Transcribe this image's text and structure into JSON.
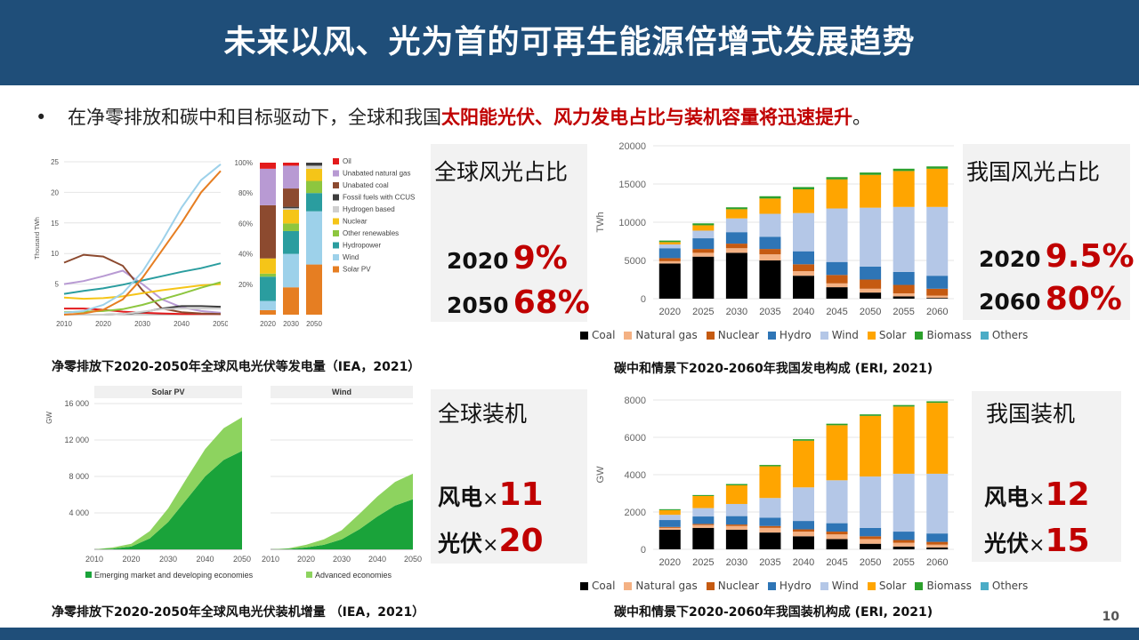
{
  "title": "未来以风、光为首的可再生能源倍增式发展趋势",
  "bullet": {
    "symbol": "•",
    "text_plain": "在净零排放和碳中和目标驱动下，全球和我国",
    "text_highlight": "太阳能光伏、风力发电占比与装机容量将迅速提升",
    "text_end": "。"
  },
  "panels": {
    "global_share": {
      "title": "全球风光占比",
      "rows": [
        {
          "year": "2020",
          "value": "9%"
        },
        {
          "year": "2050",
          "value": "68%"
        }
      ]
    },
    "china_share": {
      "title": "我国风光占比",
      "rows": [
        {
          "year": "2020",
          "value": "9.5%"
        },
        {
          "year": "2060",
          "value": "80%"
        }
      ]
    },
    "global_cap": {
      "title": "全球装机",
      "rows": [
        {
          "label": "风电",
          "x": "×",
          "value": "11"
        },
        {
          "label": "光伏",
          "x": "×",
          "value": "20"
        }
      ]
    },
    "china_cap": {
      "title": "我国装机",
      "rows": [
        {
          "label": "风电",
          "x": "×",
          "value": "12"
        },
        {
          "label": "光伏",
          "x": "×",
          "value": "15"
        }
      ]
    }
  },
  "captions": {
    "c1": "净零排放下2020-2050年全球风电光伏等发电量（IEA，2021）",
    "c2": "碳中和情景下2020-2060年我国发电构成 (ERI, 2021)",
    "c3": "净零排放下2020-2050年全球风电光伏装机增量 （IEA，2021）",
    "c4": "碳中和情景下2020-2060年我国装机构成 (ERI, 2021)"
  },
  "page_number": "10",
  "colors": {
    "title_bar": "#1f4e79",
    "highlight": "#c00000",
    "coal": "#000000",
    "natural_gas": "#f4b183",
    "nuclear": "#c55a11",
    "hydro": "#2e75b6",
    "wind": "#b4c7e7",
    "solar": "#ffa500",
    "biomass": "#2ca02c",
    "others": "#4bacc6"
  },
  "chart_data": [
    {
      "type": "line",
      "ylabel": "Thousand TWh",
      "x": [
        2010,
        2015,
        2020,
        2025,
        2030,
        2035,
        2040,
        2045,
        2050
      ],
      "ylim": [
        0,
        25
      ],
      "yticks": [
        5,
        10,
        15,
        20,
        25
      ],
      "xticks": [
        2010,
        2020,
        2030,
        2040,
        2050
      ],
      "series": [
        {
          "name": "Oil",
          "color": "#e31a1c",
          "values": [
            1.0,
            1.0,
            0.8,
            0.5,
            0.3,
            0.2,
            0.1,
            0.1,
            0.1
          ]
        },
        {
          "name": "Unabated natural gas",
          "color": "#b89ad3",
          "values": [
            5.0,
            5.5,
            6.3,
            7.2,
            5.0,
            2.5,
            1.2,
            0.6,
            0.3
          ]
        },
        {
          "name": "Unabated coal",
          "color": "#8c4a2f",
          "values": [
            8.5,
            9.8,
            9.5,
            8.0,
            4.0,
            1.0,
            0.4,
            0.2,
            0.1
          ]
        },
        {
          "name": "Fossil fuels with CCUS",
          "color": "#3d3d3d",
          "values": [
            0.0,
            0.0,
            0.0,
            0.1,
            0.4,
            1.0,
            1.4,
            1.4,
            1.3
          ]
        },
        {
          "name": "Hydrogen based",
          "color": "#cfcfcf",
          "values": [
            0.0,
            0.0,
            0.0,
            0.1,
            0.5,
            0.9,
            1.0,
            1.0,
            1.0
          ]
        },
        {
          "name": "Nuclear",
          "color": "#f5c518",
          "values": [
            2.8,
            2.6,
            2.7,
            3.0,
            3.5,
            4.0,
            4.4,
            4.8,
            5.0
          ]
        },
        {
          "name": "Other renewables",
          "color": "#8dc63f",
          "values": [
            0.4,
            0.5,
            0.6,
            0.9,
            1.6,
            2.5,
            3.4,
            4.4,
            5.3
          ]
        },
        {
          "name": "Hydropower",
          "color": "#2a9d9f",
          "values": [
            3.4,
            3.9,
            4.3,
            4.9,
            5.6,
            6.3,
            7.0,
            7.6,
            8.4
          ]
        },
        {
          "name": "Wind",
          "color": "#9dd1ea",
          "values": [
            0.3,
            0.6,
            1.6,
            3.5,
            7.0,
            12.0,
            17.5,
            22.0,
            24.6
          ]
        },
        {
          "name": "Solar PV",
          "color": "#e67e22",
          "values": [
            0.0,
            0.2,
            0.8,
            2.5,
            6.0,
            10.5,
            15.0,
            20.0,
            23.5
          ]
        }
      ]
    },
    {
      "type": "bar",
      "stacked": true,
      "categories": [
        "2020",
        "2030",
        "2050"
      ],
      "ylim": [
        0,
        100
      ],
      "yticks": [
        "20%",
        "40%",
        "60%",
        "80%",
        "100%"
      ],
      "series": [
        {
          "name": "Solar PV",
          "color": "#e67e22",
          "values": [
            3,
            18,
            33
          ]
        },
        {
          "name": "Wind",
          "color": "#9dd1ea",
          "values": [
            6,
            22,
            35
          ]
        },
        {
          "name": "Hydropower",
          "color": "#2a9d9f",
          "values": [
            16,
            15,
            12
          ]
        },
        {
          "name": "Other renewables",
          "color": "#8dc63f",
          "values": [
            2,
            5,
            8
          ]
        },
        {
          "name": "Nuclear",
          "color": "#f5c518",
          "values": [
            10,
            9,
            8
          ]
        },
        {
          "name": "Hydrogen based",
          "color": "#cfcfcf",
          "values": [
            0,
            1,
            2
          ]
        },
        {
          "name": "Fossil fuels with CCUS",
          "color": "#3d3d3d",
          "values": [
            0,
            1,
            2
          ]
        },
        {
          "name": "Unabated coal",
          "color": "#8c4a2f",
          "values": [
            35,
            12,
            0
          ]
        },
        {
          "name": "Unabated natural gas",
          "color": "#b89ad3",
          "values": [
            24,
            15,
            0
          ]
        },
        {
          "name": "Oil",
          "color": "#e31a1c",
          "values": [
            4,
            2,
            0
          ]
        }
      ]
    },
    {
      "type": "bar",
      "stacked": true,
      "ylabel": "TWh",
      "categories": [
        "2020",
        "2025",
        "2030",
        "2035",
        "2040",
        "2045",
        "2050",
        "2055",
        "2060"
      ],
      "ylim": [
        0,
        20000
      ],
      "yticks": [
        0,
        5000,
        10000,
        15000,
        20000
      ],
      "series": [
        {
          "name": "Coal",
          "color": "#000000",
          "values": [
            4600,
            5500,
            6000,
            5000,
            3000,
            1500,
            800,
            300,
            100
          ]
        },
        {
          "name": "Natural gas",
          "color": "#f4b183",
          "values": [
            300,
            500,
            600,
            800,
            600,
            500,
            500,
            400,
            300
          ]
        },
        {
          "name": "Nuclear",
          "color": "#c55a11",
          "values": [
            400,
            500,
            600,
            700,
            900,
            1100,
            1200,
            1100,
            900
          ]
        },
        {
          "name": "Hydro",
          "color": "#2e75b6",
          "values": [
            1300,
            1400,
            1500,
            1600,
            1700,
            1700,
            1700,
            1700,
            1700
          ]
        },
        {
          "name": "Wind",
          "color": "#b4c7e7",
          "values": [
            500,
            1000,
            1800,
            3000,
            5000,
            7000,
            7700,
            8500,
            9000
          ]
        },
        {
          "name": "Solar",
          "color": "#ffa500",
          "values": [
            300,
            700,
            1200,
            2000,
            3100,
            3800,
            4300,
            4700,
            5000
          ]
        },
        {
          "name": "Biomass",
          "color": "#2ca02c",
          "values": [
            200,
            250,
            250,
            300,
            300,
            300,
            300,
            300,
            300
          ]
        },
        {
          "name": "Others",
          "color": "#4bacc6",
          "values": [
            0,
            0,
            0,
            0,
            0,
            0,
            0,
            0,
            0
          ]
        }
      ]
    },
    {
      "type": "area",
      "ylabel": "GW",
      "title": "Solar PV",
      "x": [
        2010,
        2015,
        2020,
        2025,
        2030,
        2035,
        2040,
        2045,
        2050
      ],
      "ylim": [
        0,
        16000
      ],
      "yticks": [
        4000,
        8000,
        12000,
        16000
      ],
      "series": [
        {
          "name": "Emerging market and developing economies",
          "color": "#1aa33a",
          "values": [
            0,
            80,
            300,
            1200,
            3000,
            5500,
            8000,
            9800,
            10800
          ]
        },
        {
          "name": "Advanced economies",
          "color": "#8dd35f",
          "values": [
            0,
            120,
            300,
            800,
            1500,
            2300,
            3000,
            3500,
            3700
          ]
        }
      ]
    },
    {
      "type": "area",
      "title": "Wind",
      "x": [
        2010,
        2015,
        2020,
        2025,
        2030,
        2035,
        2040,
        2045,
        2050
      ],
      "ylim": [
        0,
        16000
      ],
      "series": [
        {
          "name": "Emerging market and developing economies",
          "color": "#1aa33a",
          "values": [
            0,
            50,
            200,
            500,
            1100,
            2200,
            3600,
            4800,
            5500
          ]
        },
        {
          "name": "Advanced economies",
          "color": "#8dd35f",
          "values": [
            0,
            60,
            300,
            600,
            1000,
            1700,
            2200,
            2600,
            2800
          ]
        }
      ]
    },
    {
      "type": "bar",
      "stacked": true,
      "ylabel": "GW",
      "categories": [
        "2020",
        "2025",
        "2030",
        "2035",
        "2040",
        "2045",
        "2050",
        "2055",
        "2060"
      ],
      "ylim": [
        0,
        8000
      ],
      "yticks": [
        0,
        2000,
        4000,
        6000,
        8000
      ],
      "series": [
        {
          "name": "Coal",
          "color": "#000000",
          "values": [
            1050,
            1150,
            1050,
            900,
            700,
            550,
            300,
            150,
            100
          ]
        },
        {
          "name": "Natural gas",
          "color": "#f4b183",
          "values": [
            100,
            150,
            200,
            250,
            250,
            250,
            250,
            200,
            150
          ]
        },
        {
          "name": "Nuclear",
          "color": "#c55a11",
          "values": [
            50,
            60,
            80,
            100,
            120,
            150,
            150,
            150,
            150
          ]
        },
        {
          "name": "Hydro",
          "color": "#2e75b6",
          "values": [
            370,
            400,
            450,
            450,
            450,
            450,
            450,
            450,
            450
          ]
        },
        {
          "name": "Wind",
          "color": "#b4c7e7",
          "values": [
            280,
            450,
            650,
            1050,
            1800,
            2300,
            2750,
            3100,
            3200
          ]
        },
        {
          "name": "Solar",
          "color": "#ffa500",
          "values": [
            250,
            650,
            1000,
            1700,
            2500,
            2950,
            3250,
            3600,
            3800
          ]
        },
        {
          "name": "Biomass",
          "color": "#2ca02c",
          "values": [
            50,
            50,
            70,
            70,
            80,
            80,
            80,
            80,
            80
          ]
        },
        {
          "name": "Others",
          "color": "#4bacc6",
          "values": [
            0,
            0,
            0,
            0,
            0,
            0,
            0,
            0,
            0
          ]
        }
      ]
    }
  ]
}
